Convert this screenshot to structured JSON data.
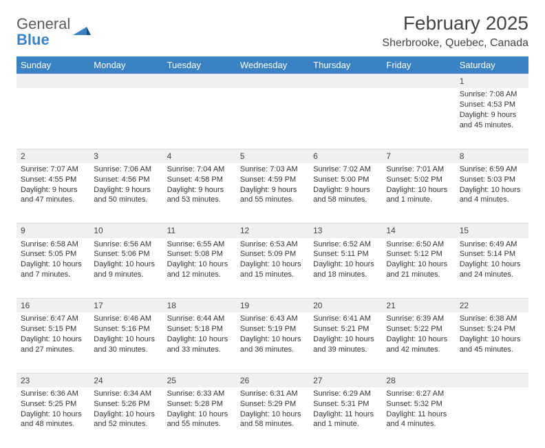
{
  "logo": {
    "word1": "General",
    "word2": "Blue"
  },
  "title": "February 2025",
  "location": "Sherbrooke, Quebec, Canada",
  "colors": {
    "header_bg": "#3b82c4",
    "header_fg": "#ffffff",
    "daynum_bg": "#eef0f1",
    "border": "#d9dcde",
    "text": "#333333",
    "logo_gray": "#5a5a5a",
    "logo_blue": "#3b82c4"
  },
  "day_names": [
    "Sunday",
    "Monday",
    "Tuesday",
    "Wednesday",
    "Thursday",
    "Friday",
    "Saturday"
  ],
  "weeks": [
    [
      null,
      null,
      null,
      null,
      null,
      null,
      {
        "n": "1",
        "sunrise": "Sunrise: 7:08 AM",
        "sunset": "Sunset: 4:53 PM",
        "daylight": "Daylight: 9 hours and 45 minutes."
      }
    ],
    [
      {
        "n": "2",
        "sunrise": "Sunrise: 7:07 AM",
        "sunset": "Sunset: 4:55 PM",
        "daylight": "Daylight: 9 hours and 47 minutes."
      },
      {
        "n": "3",
        "sunrise": "Sunrise: 7:06 AM",
        "sunset": "Sunset: 4:56 PM",
        "daylight": "Daylight: 9 hours and 50 minutes."
      },
      {
        "n": "4",
        "sunrise": "Sunrise: 7:04 AM",
        "sunset": "Sunset: 4:58 PM",
        "daylight": "Daylight: 9 hours and 53 minutes."
      },
      {
        "n": "5",
        "sunrise": "Sunrise: 7:03 AM",
        "sunset": "Sunset: 4:59 PM",
        "daylight": "Daylight: 9 hours and 55 minutes."
      },
      {
        "n": "6",
        "sunrise": "Sunrise: 7:02 AM",
        "sunset": "Sunset: 5:00 PM",
        "daylight": "Daylight: 9 hours and 58 minutes."
      },
      {
        "n": "7",
        "sunrise": "Sunrise: 7:01 AM",
        "sunset": "Sunset: 5:02 PM",
        "daylight": "Daylight: 10 hours and 1 minute."
      },
      {
        "n": "8",
        "sunrise": "Sunrise: 6:59 AM",
        "sunset": "Sunset: 5:03 PM",
        "daylight": "Daylight: 10 hours and 4 minutes."
      }
    ],
    [
      {
        "n": "9",
        "sunrise": "Sunrise: 6:58 AM",
        "sunset": "Sunset: 5:05 PM",
        "daylight": "Daylight: 10 hours and 7 minutes."
      },
      {
        "n": "10",
        "sunrise": "Sunrise: 6:56 AM",
        "sunset": "Sunset: 5:06 PM",
        "daylight": "Daylight: 10 hours and 9 minutes."
      },
      {
        "n": "11",
        "sunrise": "Sunrise: 6:55 AM",
        "sunset": "Sunset: 5:08 PM",
        "daylight": "Daylight: 10 hours and 12 minutes."
      },
      {
        "n": "12",
        "sunrise": "Sunrise: 6:53 AM",
        "sunset": "Sunset: 5:09 PM",
        "daylight": "Daylight: 10 hours and 15 minutes."
      },
      {
        "n": "13",
        "sunrise": "Sunrise: 6:52 AM",
        "sunset": "Sunset: 5:11 PM",
        "daylight": "Daylight: 10 hours and 18 minutes."
      },
      {
        "n": "14",
        "sunrise": "Sunrise: 6:50 AM",
        "sunset": "Sunset: 5:12 PM",
        "daylight": "Daylight: 10 hours and 21 minutes."
      },
      {
        "n": "15",
        "sunrise": "Sunrise: 6:49 AM",
        "sunset": "Sunset: 5:14 PM",
        "daylight": "Daylight: 10 hours and 24 minutes."
      }
    ],
    [
      {
        "n": "16",
        "sunrise": "Sunrise: 6:47 AM",
        "sunset": "Sunset: 5:15 PM",
        "daylight": "Daylight: 10 hours and 27 minutes."
      },
      {
        "n": "17",
        "sunrise": "Sunrise: 6:46 AM",
        "sunset": "Sunset: 5:16 PM",
        "daylight": "Daylight: 10 hours and 30 minutes."
      },
      {
        "n": "18",
        "sunrise": "Sunrise: 6:44 AM",
        "sunset": "Sunset: 5:18 PM",
        "daylight": "Daylight: 10 hours and 33 minutes."
      },
      {
        "n": "19",
        "sunrise": "Sunrise: 6:43 AM",
        "sunset": "Sunset: 5:19 PM",
        "daylight": "Daylight: 10 hours and 36 minutes."
      },
      {
        "n": "20",
        "sunrise": "Sunrise: 6:41 AM",
        "sunset": "Sunset: 5:21 PM",
        "daylight": "Daylight: 10 hours and 39 minutes."
      },
      {
        "n": "21",
        "sunrise": "Sunrise: 6:39 AM",
        "sunset": "Sunset: 5:22 PM",
        "daylight": "Daylight: 10 hours and 42 minutes."
      },
      {
        "n": "22",
        "sunrise": "Sunrise: 6:38 AM",
        "sunset": "Sunset: 5:24 PM",
        "daylight": "Daylight: 10 hours and 45 minutes."
      }
    ],
    [
      {
        "n": "23",
        "sunrise": "Sunrise: 6:36 AM",
        "sunset": "Sunset: 5:25 PM",
        "daylight": "Daylight: 10 hours and 48 minutes."
      },
      {
        "n": "24",
        "sunrise": "Sunrise: 6:34 AM",
        "sunset": "Sunset: 5:26 PM",
        "daylight": "Daylight: 10 hours and 52 minutes."
      },
      {
        "n": "25",
        "sunrise": "Sunrise: 6:33 AM",
        "sunset": "Sunset: 5:28 PM",
        "daylight": "Daylight: 10 hours and 55 minutes."
      },
      {
        "n": "26",
        "sunrise": "Sunrise: 6:31 AM",
        "sunset": "Sunset: 5:29 PM",
        "daylight": "Daylight: 10 hours and 58 minutes."
      },
      {
        "n": "27",
        "sunrise": "Sunrise: 6:29 AM",
        "sunset": "Sunset: 5:31 PM",
        "daylight": "Daylight: 11 hours and 1 minute."
      },
      {
        "n": "28",
        "sunrise": "Sunrise: 6:27 AM",
        "sunset": "Sunset: 5:32 PM",
        "daylight": "Daylight: 11 hours and 4 minutes."
      },
      null
    ]
  ]
}
